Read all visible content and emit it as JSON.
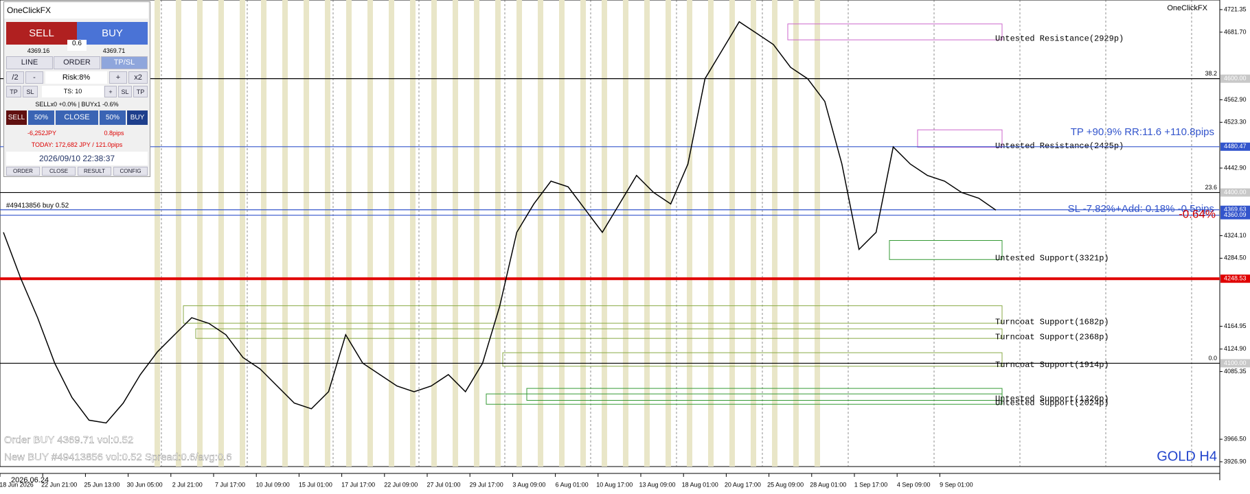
{
  "header": {
    "brand": "OneClickFX",
    "symbol": "GOLD H4",
    "start_date": "2026.06.24",
    "position_tag": "#49413856 buy 0.52"
  },
  "panel": {
    "title": "OneClickFX",
    "sell": "SELL",
    "buy": "BUY",
    "spread": "0.6",
    "bid": "4369.16",
    "ask": "4369.71",
    "tabs": [
      "LINE",
      "ORDER",
      "TP/SL"
    ],
    "row1": [
      "/2",
      "-",
      "Risk:8%",
      "+",
      "x2"
    ],
    "row2": [
      "TP",
      "SL",
      "TS: 10",
      "+",
      "SL",
      "TP"
    ],
    "status": "SELLx0 +0.0% | BUYx1 -0.6%",
    "row3": [
      "SELL",
      "50%",
      "CLOSE",
      "50%",
      "BUY"
    ],
    "pl_jpy": "-6,252JPY",
    "pl_pips": "0.8pips",
    "today": "TODAY: 172,682 JPY / 121.0pips",
    "clock": "2026/09/10  22:38:37",
    "footer": [
      "ORDER",
      "CLOSE",
      "RESULT",
      "CONFIG"
    ]
  },
  "annotations": {
    "tp": "TP +90.9% RR:11.6 +110.8pips",
    "sl": "SL -7.82%+Add: 0.18% -0.5pips",
    "change": "-0.64%",
    "log": [
      "Order BUY 4369.71 vol:0.52",
      "New BUY #49413856 vol:0.52 Spread:0.6/avg:0.6"
    ]
  },
  "chart": {
    "ylim": [
      3926.9,
      4721.35
    ],
    "yticks": [
      4721.35,
      {
        "value": 4681.7,
        "label": "4681.70"
      },
      {
        "value": 4562.9,
        "label": "4562.90"
      },
      {
        "value": 4523.3,
        "label": "4523.30"
      },
      {
        "value": 4442.9,
        "label": "4442.90"
      },
      {
        "value": 4324.1,
        "label": "4324.10"
      },
      {
        "value": 4284.5,
        "label": "4284.50"
      },
      4164.95,
      {
        "value": 4124.9,
        "label": "4124.90"
      },
      4085.35,
      {
        "value": 3966.5,
        "label": "3966.50"
      },
      {
        "value": 3926.9,
        "label": "3926.90"
      }
    ],
    "dates": [
      "18 Jun 2026",
      "22 Jun 21:00",
      "25 Jun 13:00",
      "30 Jun 05:00",
      "2 Jul 21:00",
      "7 Jul 17:00",
      "10 Jul 09:00",
      "15 Jul 01:00",
      "17 Jul 17:00",
      "22 Jul 09:00",
      "27 Jul 01:00",
      "29 Jul 17:00",
      "3 Aug 09:00",
      "6 Aug 01:00",
      "10 Aug 17:00",
      "13 Aug 09:00",
      "18 Aug 01:00",
      "20 Aug 17:00",
      "25 Aug 09:00",
      "28 Aug 01:00",
      "1 Sep 17:00",
      "4 Sep 09:00",
      "9 Sep 01:00"
    ],
    "close": [
      4330,
      4250,
      4180,
      4100,
      4040,
      4000,
      3995,
      4030,
      4080,
      4120,
      4150,
      4180,
      4170,
      4150,
      4110,
      4090,
      4060,
      4030,
      4020,
      4050,
      4150,
      4100,
      4080,
      4060,
      4050,
      4060,
      4080,
      4050,
      4100,
      4200,
      4330,
      4380,
      4420,
      4410,
      4370,
      4330,
      4380,
      4430,
      4400,
      4380,
      4450,
      4600,
      4650,
      4700,
      4680,
      4660,
      4620,
      4600,
      4560,
      4450,
      4300,
      4330,
      4480,
      4450,
      4430,
      4420,
      4400,
      4390,
      4369
    ],
    "levels": [
      {
        "price": 4600,
        "label": "4600.00",
        "fib": "38.2",
        "color": "#000000"
      },
      {
        "price": 4400,
        "label": "4400.00",
        "fib": "23.6",
        "color": "#000000"
      },
      {
        "price": 4100,
        "label": "4100.00",
        "fib": "0.0",
        "color": "#000000"
      },
      {
        "price": 4480.47,
        "label": "4480.47",
        "color": "#3355cc"
      },
      {
        "price": 4369.63,
        "label": "4369.63",
        "color": "#3355cc"
      },
      {
        "price": 4360.09,
        "label": "4360.09",
        "color": "#3355cc"
      },
      {
        "price": 4248.53,
        "label": "4248.53",
        "color": "#e00000"
      }
    ],
    "zones": [
      {
        "label": "Untested Resistance(2929p)",
        "top": 4696.2,
        "bottom": 4668.2,
        "color": "#cc66cc"
      },
      {
        "label": "Untested Resistance(2425p)",
        "top": 4510.1,
        "bottom": 4479.4,
        "color": "#cc66cc"
      },
      {
        "label": "Untested Support(3321p)",
        "top": 4315.7,
        "bottom": 4282.2,
        "color": "#339933"
      },
      {
        "label": "Turncoat Support(1682p)",
        "top": 4201,
        "bottom": 4170.3,
        "color": "#88aa44"
      },
      {
        "label": "Turncoat Support(2368p)",
        "top": 4160.5,
        "bottom": 4143.7,
        "color": "#88aa44"
      },
      {
        "label": "Turncoat Support(1914p)",
        "top": 4118.5,
        "bottom": 4094.7,
        "color": "#88aa44"
      },
      {
        "label": "Untested Support(1326p)",
        "top": 4055.8,
        "bottom": 4034.8,
        "color": "#339933"
      },
      {
        "label": "Untested Support(2024p)",
        "top": 4046.1,
        "bottom": 4027.9,
        "color": "#339933"
      }
    ]
  }
}
